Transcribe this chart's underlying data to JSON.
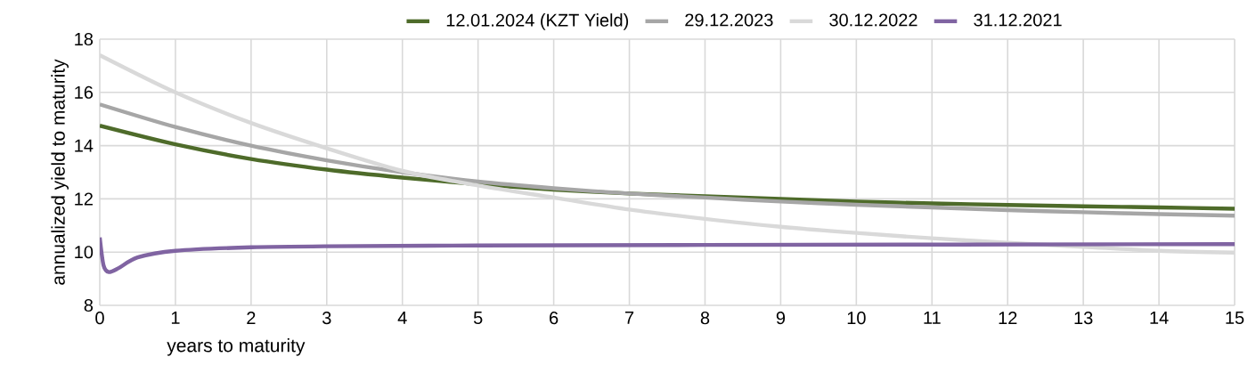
{
  "chart_data": {
    "type": "line",
    "xlabel": "years to maturity",
    "ylabel": "annualized yield to maturity",
    "xlim": [
      0,
      15
    ],
    "ylim": [
      8,
      18
    ],
    "xticks": [
      0,
      1,
      2,
      3,
      4,
      5,
      6,
      7,
      8,
      9,
      10,
      11,
      12,
      13,
      14,
      15
    ],
    "yticks": [
      8,
      10,
      12,
      14,
      16,
      18
    ],
    "grid": true,
    "legend": "top",
    "marker": "none",
    "line_style": "solid",
    "series": [
      {
        "name": "12.01.2024 (KZT Yield)",
        "color": "#4e6b2a",
        "x": [
          0,
          1,
          2,
          3,
          4,
          5,
          6,
          7,
          8,
          9,
          10,
          11,
          12,
          13,
          14,
          15
        ],
        "values": [
          14.75,
          14.05,
          13.5,
          13.1,
          12.8,
          12.55,
          12.35,
          12.2,
          12.1,
          12.0,
          11.9,
          11.83,
          11.77,
          11.72,
          11.68,
          11.63
        ]
      },
      {
        "name": "29.12.2023",
        "color": "#a6a6a6",
        "x": [
          0,
          1,
          2,
          3,
          4,
          5,
          6,
          7,
          8,
          9,
          10,
          11,
          12,
          13,
          14,
          15
        ],
        "values": [
          15.55,
          14.7,
          14.0,
          13.45,
          13.0,
          12.65,
          12.4,
          12.2,
          12.05,
          11.9,
          11.78,
          11.68,
          11.58,
          11.5,
          11.43,
          11.37
        ]
      },
      {
        "name": "30.12.2022",
        "color": "#d9d9d9",
        "x": [
          0,
          1,
          2,
          3,
          4,
          5,
          6,
          7,
          8,
          9,
          10,
          11,
          12,
          13,
          14,
          15
        ],
        "values": [
          17.4,
          16.0,
          14.85,
          13.9,
          13.05,
          12.5,
          12.05,
          11.6,
          11.25,
          10.95,
          10.72,
          10.52,
          10.35,
          10.2,
          10.05,
          9.98
        ]
      },
      {
        "name": "31.12.2021",
        "color": "#8064a2",
        "x": [
          0,
          0.05,
          0.12,
          0.25,
          0.5,
          1,
          2,
          3,
          5,
          8,
          15
        ],
        "values": [
          10.55,
          9.5,
          9.25,
          9.4,
          9.8,
          10.05,
          10.18,
          10.22,
          10.25,
          10.27,
          10.3
        ]
      }
    ]
  }
}
